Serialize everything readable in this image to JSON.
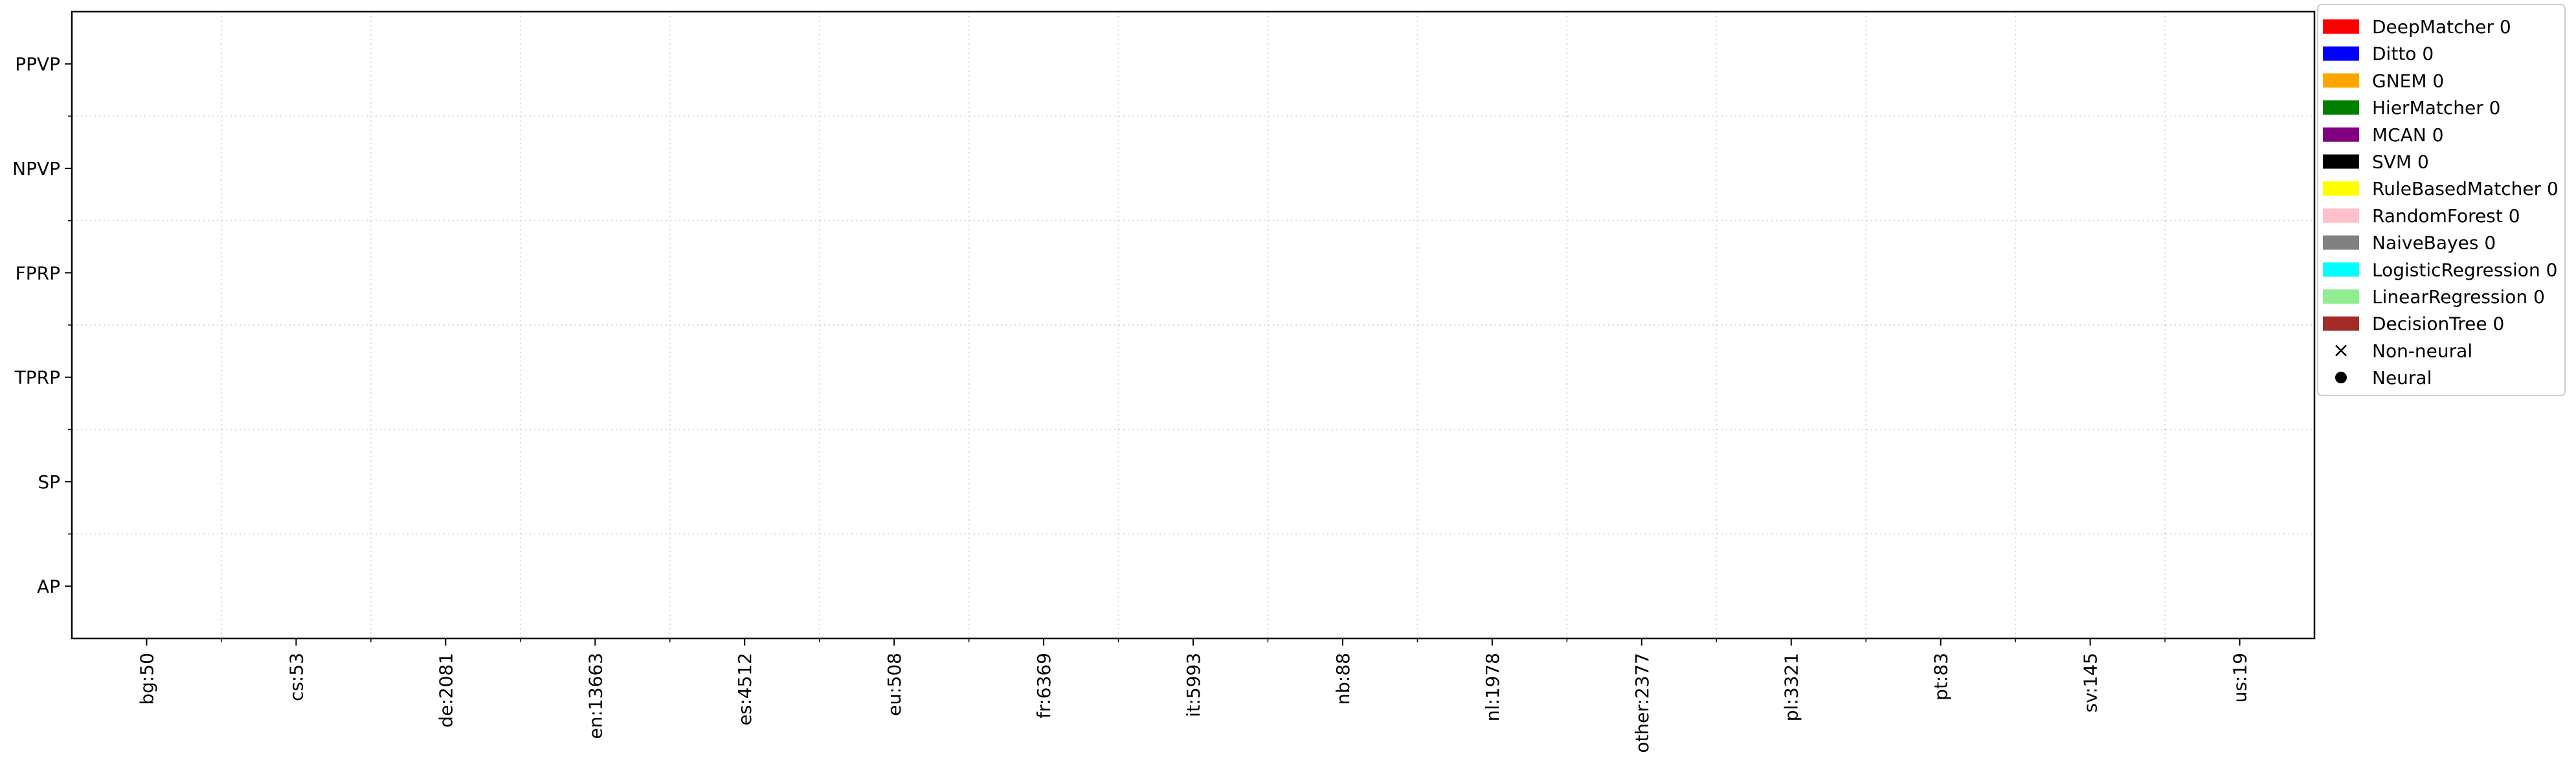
{
  "chart_data": {
    "type": "scatter",
    "title": "",
    "xlabel": "",
    "ylabel": "",
    "categories": [
      "bg:50",
      "cs:53",
      "de:2081",
      "en:13663",
      "es:4512",
      "eu:508",
      "fr:6369",
      "it:5993",
      "nb:88",
      "nl:1978",
      "other:2377",
      "pl:3321",
      "pt:83",
      "sv:145",
      "us:19"
    ],
    "y_categories": [
      "PPVP",
      "NPVP",
      "FPRP",
      "TPRP",
      "SP",
      "AP"
    ],
    "grid": true,
    "legend_position": "upper right, outside plot",
    "series": [
      {
        "name": "DeepMatcher 0",
        "color": "#ff0000",
        "points": []
      },
      {
        "name": "Ditto 0",
        "color": "#0000ff",
        "points": []
      },
      {
        "name": "GNEM 0",
        "color": "#ffa500",
        "points": []
      },
      {
        "name": "HierMatcher 0",
        "color": "#008000",
        "points": []
      },
      {
        "name": "MCAN 0",
        "color": "#800080",
        "points": []
      },
      {
        "name": "SVM 0",
        "color": "#000000",
        "points": []
      },
      {
        "name": "RuleBasedMatcher 0",
        "color": "#ffff00",
        "points": []
      },
      {
        "name": "RandomForest 0",
        "color": "#ffc0cb",
        "points": []
      },
      {
        "name": "NaiveBayes 0",
        "color": "#808080",
        "points": []
      },
      {
        "name": "LogisticRegression 0",
        "color": "#00ffff",
        "points": []
      },
      {
        "name": "LinearRegression 0",
        "color": "#90ee90",
        "points": []
      },
      {
        "name": "DecisionTree 0",
        "color": "#a52a2a",
        "points": []
      }
    ],
    "marker_legend": [
      {
        "label": "Non-neural",
        "marker": "x"
      },
      {
        "label": "Neural",
        "marker": "circle"
      }
    ]
  }
}
